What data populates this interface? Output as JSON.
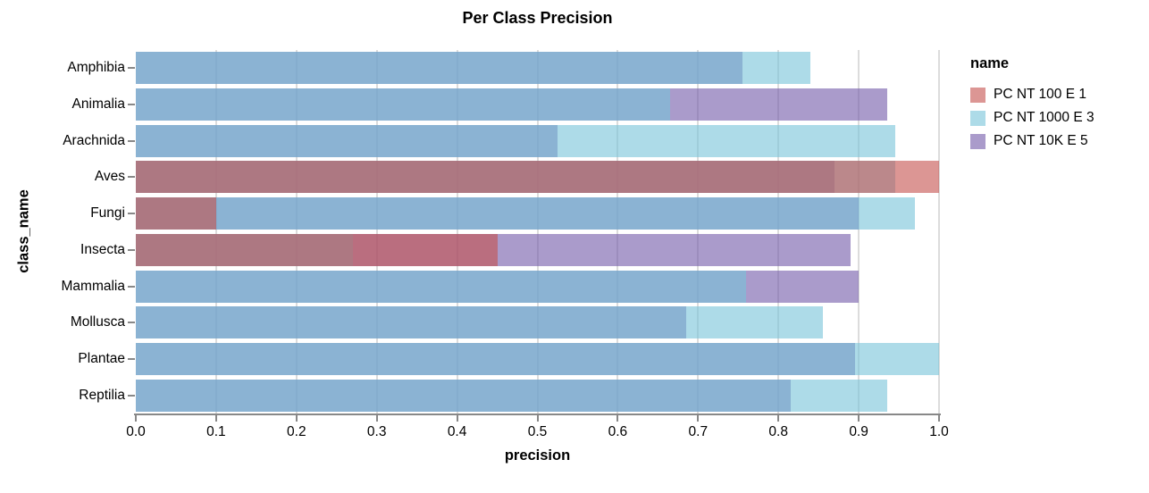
{
  "title": "Per Class Precision",
  "axes": {
    "x_title": "precision",
    "y_title": "class_name",
    "x_tick_labels": [
      "0.0",
      "0.1",
      "0.2",
      "0.3",
      "0.4",
      "0.5",
      "0.6",
      "0.7",
      "0.8",
      "0.9",
      "1.0"
    ]
  },
  "legend": {
    "title": "name",
    "entries": [
      {
        "label": "PC NT 100 E 1",
        "color": "rgba(197,80,77,0.6)"
      },
      {
        "label": "PC NT 1000 E 3",
        "color": "rgba(118,195,217,0.6)"
      },
      {
        "label": "PC NT 10K E 5",
        "color": "rgba(113,88,168,0.6)"
      }
    ]
  },
  "chart_data": {
    "type": "bar",
    "orientation": "horizontal",
    "title": "Per Class Precision",
    "xlabel": "precision",
    "ylabel": "class_name",
    "xlim": [
      0,
      1.0
    ],
    "x_tick_step": 0.1,
    "grid": true,
    "legend_position": "right",
    "overlap_mode": "layered-transparent-bars",
    "categories": [
      "Amphibia",
      "Animalia",
      "Arachnida",
      "Aves",
      "Fungi",
      "Insecta",
      "Mammalia",
      "Mollusca",
      "Plantae",
      "Reptilia"
    ],
    "series": [
      {
        "name": "PC NT 100 E 1",
        "color": "rgba(197,80,77,0.6)",
        "values": [
          0,
          0,
          0,
          1.0,
          0.1,
          0.45,
          0,
          0,
          0,
          0
        ]
      },
      {
        "name": "PC NT 1000 E 3",
        "color": "rgba(118,195,217,0.6)",
        "values": [
          0.84,
          0.665,
          0.945,
          0.945,
          0.97,
          0.27,
          0.76,
          0.855,
          1.0,
          0.935
        ]
      },
      {
        "name": "PC NT 10K E 5",
        "color": "rgba(113,88,168,0.6)",
        "values": [
          0.755,
          0.935,
          0.525,
          0.87,
          0.9,
          0.89,
          0.9,
          0.685,
          0.895,
          0.815
        ]
      }
    ]
  },
  "colors": {
    "grid": "#dcdcdc",
    "axis": "#888888",
    "text": "#000000",
    "background": "#ffffff"
  }
}
